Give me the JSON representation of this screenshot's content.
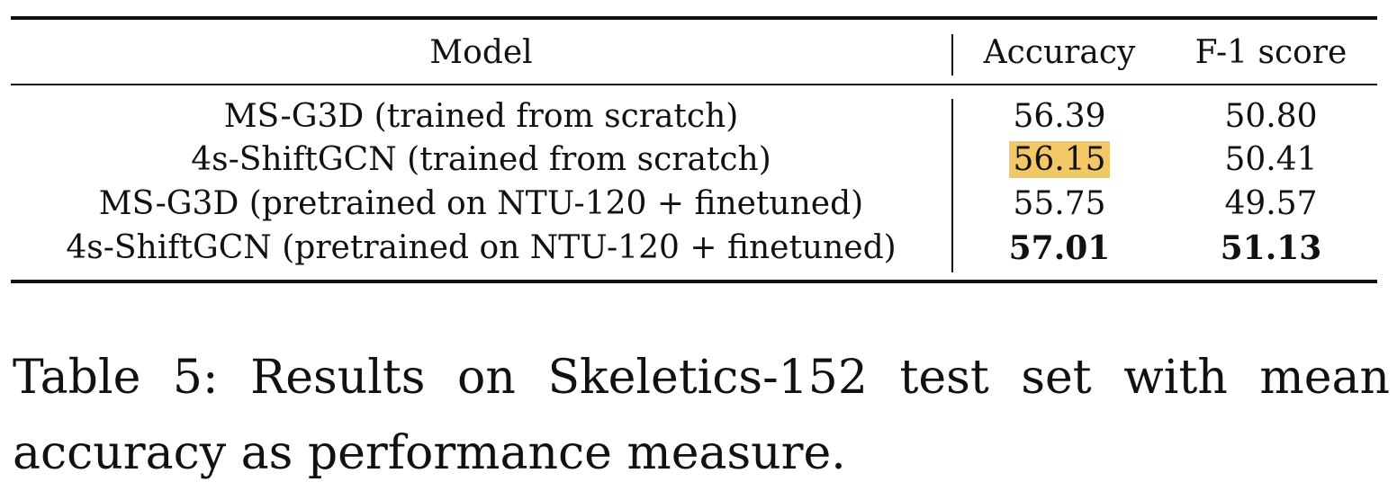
{
  "table": {
    "headers": {
      "model": "Model",
      "accuracy": "Accuracy",
      "f1": "F-1 score"
    },
    "rows": [
      {
        "model": "MS-G3D (trained from scratch)",
        "accuracy": "56.39",
        "f1": "50.80"
      },
      {
        "model": "4s-ShiftGCN (trained from scratch)",
        "accuracy": "56.15",
        "f1": "50.41"
      },
      {
        "model": "MS-G3D (pretrained on NTU-120 + finetuned)",
        "accuracy": "55.75",
        "f1": "49.57"
      },
      {
        "model": "4s-ShiftGCN (pretrained on NTU-120 + finetuned)",
        "accuracy": "57.01",
        "f1": "51.13"
      }
    ],
    "highlight_color": "#f2c766"
  },
  "caption": {
    "line1": "Table 5: Results on Skeletics-152 test set with mean",
    "line2": "accuracy as performance measure."
  }
}
